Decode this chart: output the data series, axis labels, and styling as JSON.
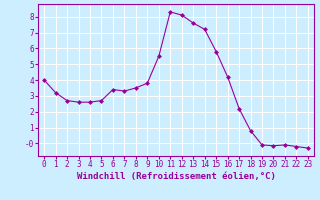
{
  "x": [
    0,
    1,
    2,
    3,
    4,
    5,
    6,
    7,
    8,
    9,
    10,
    11,
    12,
    13,
    14,
    15,
    16,
    17,
    18,
    19,
    20,
    21,
    22,
    23
  ],
  "y": [
    4.0,
    3.2,
    2.7,
    2.6,
    2.6,
    2.7,
    3.4,
    3.3,
    3.5,
    3.8,
    5.5,
    8.3,
    8.1,
    7.6,
    7.2,
    5.8,
    4.2,
    2.2,
    0.8,
    -0.1,
    -0.15,
    -0.1,
    -0.2,
    -0.3
  ],
  "line_color": "#990099",
  "marker": "D",
  "markersize": 2.0,
  "linewidth": 0.8,
  "xlabel": "Windchill (Refroidissement éolien,°C)",
  "xlabel_fontsize": 6.5,
  "bg_color": "#cceeff",
  "grid_color": "#ffffff",
  "ylim": [
    -0.8,
    8.8
  ],
  "xlim": [
    -0.5,
    23.5
  ],
  "yticks": [
    0,
    1,
    2,
    3,
    4,
    5,
    6,
    7,
    8
  ],
  "ytick_labels": [
    "-0",
    "1",
    "2",
    "3",
    "4",
    "5",
    "6",
    "7",
    "8"
  ],
  "xticks": [
    0,
    1,
    2,
    3,
    4,
    5,
    6,
    7,
    8,
    9,
    10,
    11,
    12,
    13,
    14,
    15,
    16,
    17,
    18,
    19,
    20,
    21,
    22,
    23
  ],
  "tick_fontsize": 5.5,
  "spine_color": "#990099",
  "tick_color": "#990099"
}
